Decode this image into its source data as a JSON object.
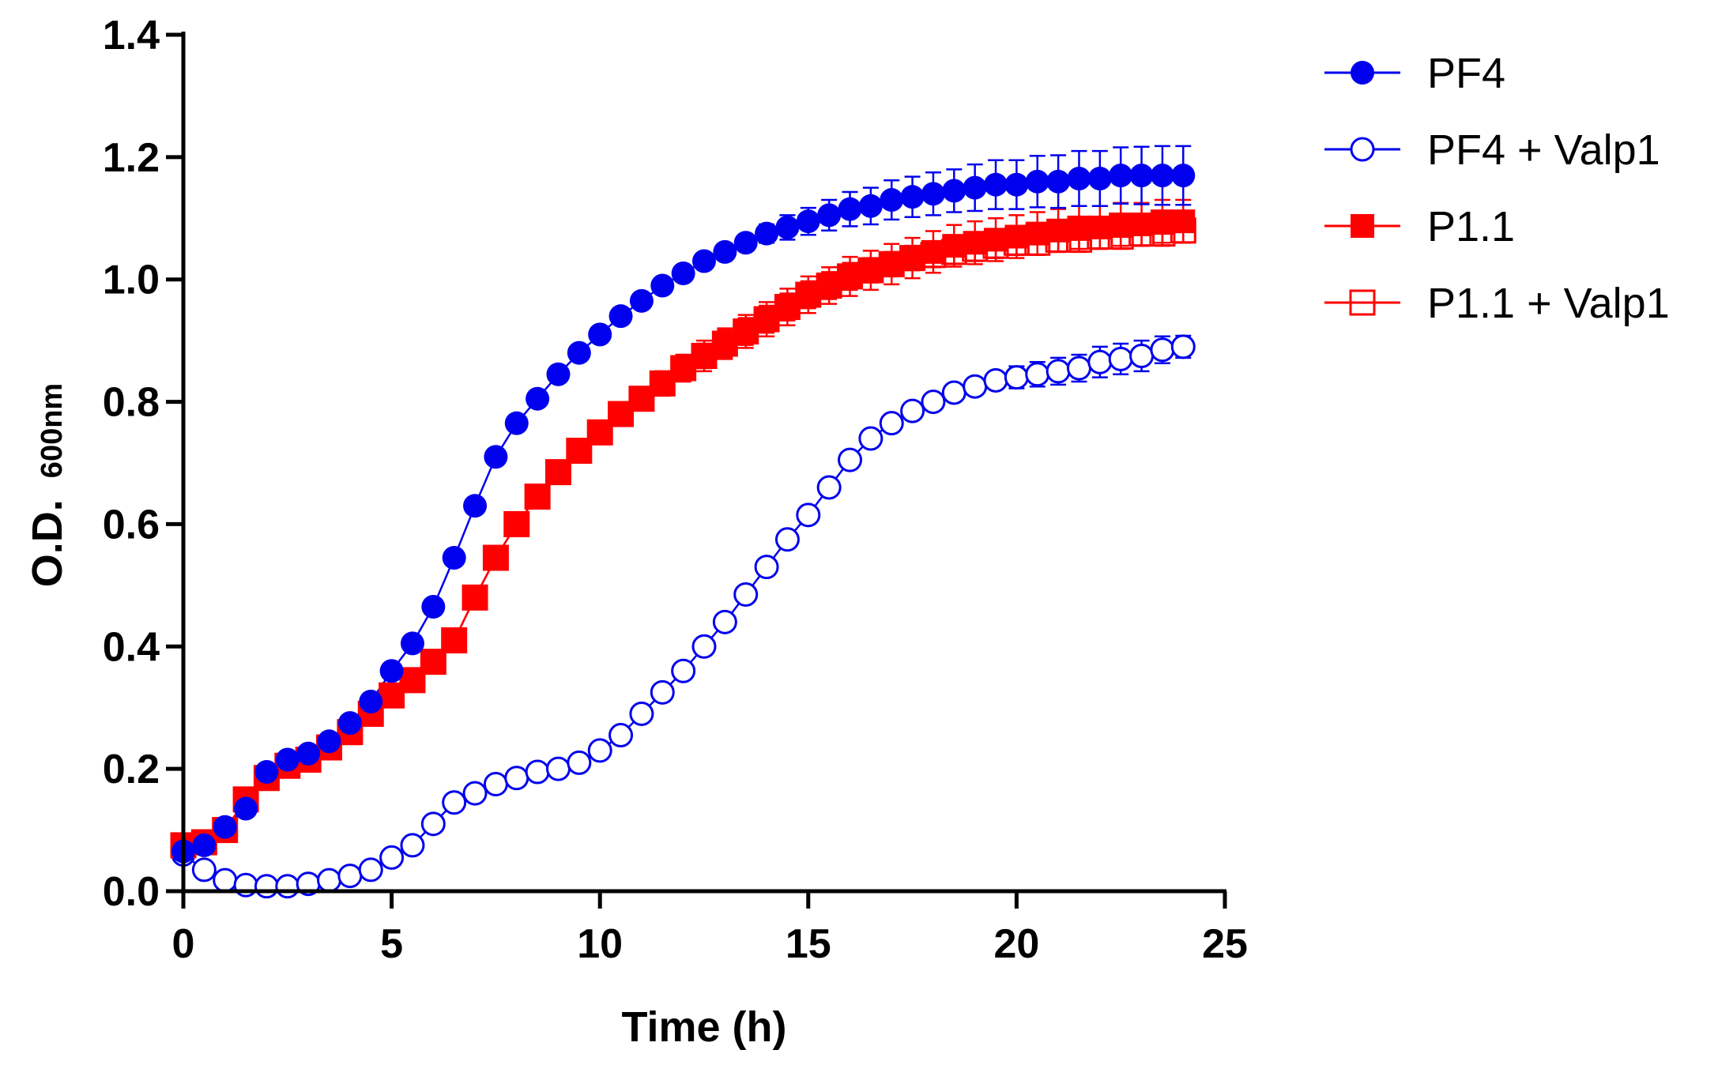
{
  "chart_data": {
    "type": "line",
    "title": "",
    "xlabel": "Time (h)",
    "ylabel_main": "O.D.",
    "ylabel_sub": "600nm",
    "xlim": [
      0,
      25
    ],
    "ylim": [
      0,
      1.4
    ],
    "xticks": [
      "0",
      "5",
      "10",
      "15",
      "20",
      "25"
    ],
    "yticks": [
      "0.0",
      "0.2",
      "0.4",
      "0.6",
      "0.8",
      "1.0",
      "1.2",
      "1.4"
    ],
    "grid": false,
    "legend_position": "top-right",
    "x": [
      0,
      0.5,
      1,
      1.5,
      2,
      2.5,
      3,
      3.5,
      4,
      4.5,
      5,
      5.5,
      6,
      6.5,
      7,
      7.5,
      8,
      8.5,
      9,
      9.5,
      10,
      10.5,
      11,
      11.5,
      12,
      12.5,
      13,
      13.5,
      14,
      14.5,
      15,
      15.5,
      16,
      16.5,
      17,
      17.5,
      18,
      18.5,
      19,
      19.5,
      20,
      20.5,
      21,
      21.5,
      22,
      22.5,
      23,
      23.5,
      24
    ],
    "series": [
      {
        "name": "PF4",
        "color": "#0000ee",
        "marker": "circle-filled",
        "values": [
          0.065,
          0.075,
          0.105,
          0.135,
          0.195,
          0.215,
          0.225,
          0.245,
          0.275,
          0.31,
          0.36,
          0.405,
          0.465,
          0.545,
          0.63,
          0.71,
          0.765,
          0.805,
          0.845,
          0.88,
          0.91,
          0.94,
          0.965,
          0.99,
          1.01,
          1.03,
          1.045,
          1.06,
          1.075,
          1.085,
          1.095,
          1.105,
          1.115,
          1.12,
          1.13,
          1.135,
          1.14,
          1.145,
          1.15,
          1.155,
          1.155,
          1.16,
          1.16,
          1.165,
          1.165,
          1.17,
          1.17,
          1.17,
          1.17
        ],
        "errors": [
          0,
          0,
          0,
          0,
          0,
          0,
          0,
          0,
          0,
          0,
          0,
          0,
          0,
          0,
          0,
          0,
          0,
          0,
          0,
          0,
          0,
          0,
          0,
          0,
          0,
          0,
          0,
          0.01,
          0.015,
          0.02,
          0.022,
          0.025,
          0.028,
          0.03,
          0.032,
          0.033,
          0.035,
          0.035,
          0.038,
          0.04,
          0.04,
          0.042,
          0.043,
          0.045,
          0.045,
          0.046,
          0.047,
          0.048,
          0.048
        ]
      },
      {
        "name": "PF4 + Valp1",
        "color": "#0000ee",
        "marker": "circle-open",
        "values": [
          0.06,
          0.035,
          0.018,
          0.01,
          0.008,
          0.008,
          0.012,
          0.018,
          0.025,
          0.035,
          0.055,
          0.075,
          0.11,
          0.145,
          0.16,
          0.175,
          0.185,
          0.195,
          0.2,
          0.21,
          0.23,
          0.255,
          0.29,
          0.325,
          0.36,
          0.4,
          0.44,
          0.485,
          0.53,
          0.575,
          0.615,
          0.66,
          0.705,
          0.74,
          0.765,
          0.785,
          0.8,
          0.815,
          0.825,
          0.835,
          0.84,
          0.845,
          0.85,
          0.855,
          0.865,
          0.87,
          0.875,
          0.885,
          0.89
        ],
        "errors": [
          0,
          0,
          0,
          0,
          0,
          0,
          0,
          0,
          0,
          0,
          0,
          0,
          0,
          0,
          0,
          0,
          0,
          0,
          0,
          0,
          0,
          0,
          0,
          0,
          0,
          0,
          0,
          0,
          0,
          0,
          0,
          0,
          0,
          0,
          0,
          0,
          0,
          0,
          0,
          0.012,
          0.018,
          0.02,
          0.022,
          0.022,
          0.025,
          0.025,
          0.025,
          0.022,
          0.018
        ]
      },
      {
        "name": "P1.1",
        "color": "#ff0000",
        "marker": "square-filled",
        "values": [
          0.075,
          0.08,
          0.1,
          0.15,
          0.185,
          0.205,
          0.215,
          0.235,
          0.26,
          0.29,
          0.32,
          0.345,
          0.375,
          0.41,
          0.48,
          0.545,
          0.6,
          0.645,
          0.685,
          0.72,
          0.75,
          0.78,
          0.805,
          0.83,
          0.855,
          0.875,
          0.895,
          0.915,
          0.935,
          0.955,
          0.975,
          0.99,
          1.005,
          1.015,
          1.025,
          1.035,
          1.045,
          1.055,
          1.06,
          1.065,
          1.07,
          1.075,
          1.08,
          1.085,
          1.085,
          1.09,
          1.09,
          1.095,
          1.095
        ],
        "errors": [
          0,
          0,
          0,
          0,
          0,
          0,
          0,
          0,
          0,
          0,
          0,
          0,
          0,
          0,
          0,
          0,
          0,
          0,
          0,
          0,
          0.012,
          0.015,
          0.018,
          0.02,
          0.022,
          0.025,
          0.025,
          0.027,
          0.028,
          0.03,
          0.03,
          0.03,
          0.032,
          0.032,
          0.033,
          0.033,
          0.034,
          0.034,
          0.035,
          0.035,
          0.035,
          0.035,
          0.035,
          0.035,
          0.035,
          0.035,
          0.035,
          0.035,
          0.035
        ]
      },
      {
        "name": "P1.1 + Valp1",
        "color": "#ff0000",
        "marker": "square-open",
        "values": [
          0.075,
          0.08,
          0.1,
          0.15,
          0.185,
          0.205,
          0.215,
          0.235,
          0.26,
          0.29,
          0.32,
          0.345,
          0.375,
          0.41,
          0.48,
          0.545,
          0.6,
          0.645,
          0.685,
          0.72,
          0.75,
          0.78,
          0.805,
          0.83,
          0.855,
          0.875,
          0.895,
          0.915,
          0.935,
          0.955,
          0.975,
          0.99,
          1.005,
          1.015,
          1.025,
          1.035,
          1.04,
          1.045,
          1.05,
          1.055,
          1.06,
          1.06,
          1.065,
          1.065,
          1.07,
          1.07,
          1.075,
          1.075,
          1.08
        ],
        "errors": [
          0,
          0,
          0,
          0,
          0,
          0,
          0,
          0,
          0,
          0,
          0,
          0,
          0,
          0,
          0,
          0,
          0,
          0,
          0,
          0,
          0.01,
          0.012,
          0.015,
          0.018,
          0.02,
          0.02,
          0.022,
          0.022,
          0.022,
          0.022,
          0.022,
          0.022,
          0.022,
          0.02,
          0.02,
          0.02,
          0.02,
          0.02,
          0.02,
          0.02,
          0.02,
          0.02,
          0.02,
          0.02,
          0.02,
          0.02,
          0.02,
          0.02,
          0.02
        ]
      }
    ]
  }
}
